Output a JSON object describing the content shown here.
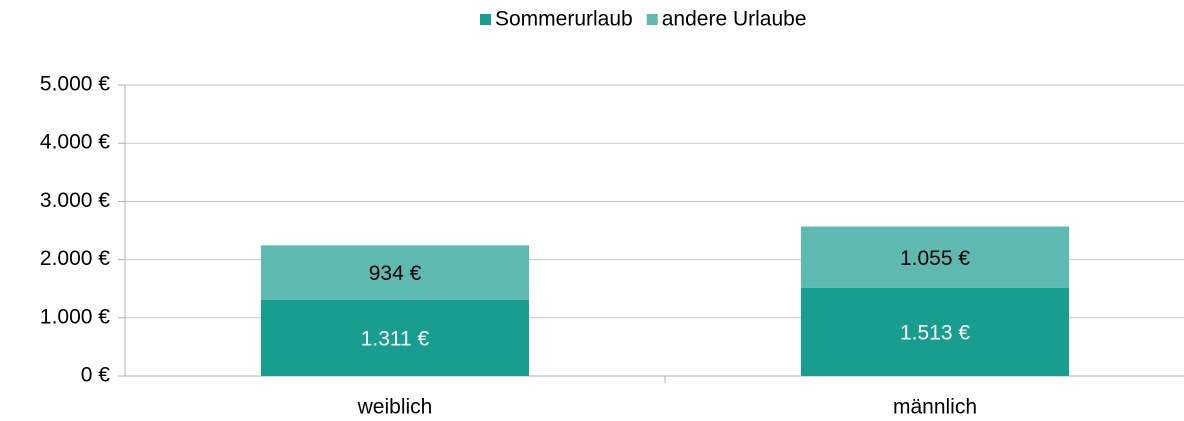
{
  "chart_data": {
    "type": "stacked_bar",
    "categories": [
      "weiblich",
      "männlich"
    ],
    "series": [
      {
        "name": "Sommerurlaub",
        "color": "#179e8e",
        "values": [
          1311,
          1513
        ],
        "value_labels": [
          "1.311 €",
          "1.513 €"
        ]
      },
      {
        "name": "andere Urlaube",
        "color": "#5eb9b0",
        "values": [
          934,
          1055
        ],
        "value_labels": [
          "934 €",
          "1.055 €"
        ]
      }
    ],
    "ylim": [
      0,
      5000
    ],
    "yticks": [
      {
        "value": 0,
        "label": "0 €"
      },
      {
        "value": 1000,
        "label": "1.000 €"
      },
      {
        "value": 2000,
        "label": "2.000 €"
      },
      {
        "value": 3000,
        "label": "3.000 €"
      },
      {
        "value": 4000,
        "label": "4.000 €"
      },
      {
        "value": 5000,
        "label": "5.000 €"
      }
    ],
    "grid": true,
    "legend": "top"
  }
}
